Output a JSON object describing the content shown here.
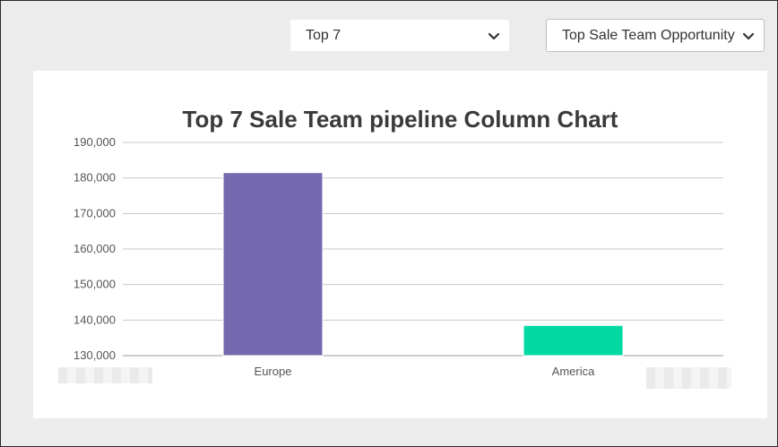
{
  "controls": {
    "top_select": {
      "value": "Top 7"
    },
    "metric_select": {
      "value": "Top Sale Team Opportunity"
    }
  },
  "chart_data": {
    "type": "bar",
    "title": "Top 7 Sale Team pipeline Column Chart",
    "categories": [
      "Europe",
      "America"
    ],
    "values": [
      181500,
      138500
    ],
    "colors": [
      "#7469ae",
      "#00d9a3"
    ],
    "ylim": [
      130000,
      190000
    ],
    "yticks": [
      190000,
      180000,
      170000,
      160000,
      150000,
      140000,
      130000
    ],
    "ytick_labels": [
      "190,000",
      "180,000",
      "170,000",
      "160,000",
      "150,000",
      "140,000",
      "130,000"
    ],
    "grid": true,
    "xlabel": "",
    "ylabel": ""
  }
}
